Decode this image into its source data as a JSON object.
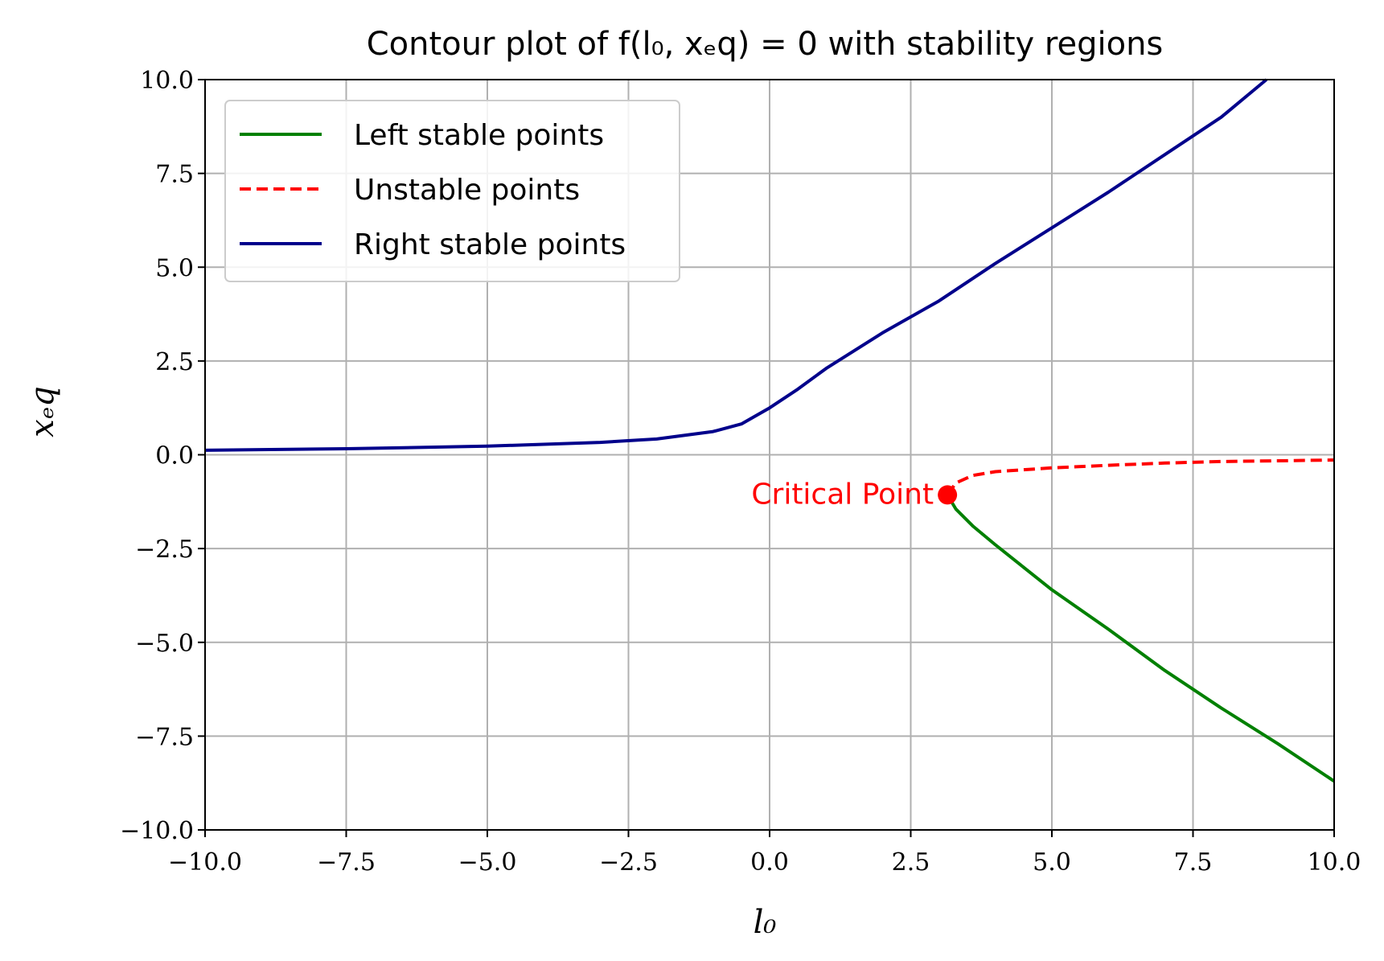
{
  "chart_data": {
    "type": "line",
    "title": "Contour plot of f(l₀, xₑq) = 0 with stability regions",
    "xlabel": "l₀",
    "ylabel": "xₑq",
    "xlim": [
      -10,
      10
    ],
    "ylim": [
      -10,
      10
    ],
    "xticks": [
      -10,
      -7.5,
      -5,
      -2.5,
      0,
      2.5,
      5,
      7.5,
      10
    ],
    "yticks": [
      -10,
      -7.5,
      -5,
      -2.5,
      0,
      2.5,
      5,
      7.5,
      10
    ],
    "xtick_labels": [
      "−10.0",
      "−7.5",
      "−5.0",
      "−2.5",
      "0.0",
      "2.5",
      "5.0",
      "7.5",
      "10.0"
    ],
    "ytick_labels": [
      "−10.0",
      "−7.5",
      "−5.0",
      "−2.5",
      "0.0",
      "2.5",
      "5.0",
      "7.5",
      "10.0"
    ],
    "grid": true,
    "legend_position": "top-left",
    "series": [
      {
        "name": "Left stable points",
        "color": "#008000",
        "style": "solid",
        "x": [
          3.15,
          3.3,
          3.6,
          4.0,
          5.0,
          6.0,
          7.0,
          8.0,
          9.0,
          10.0
        ],
        "y": [
          -1.07,
          -1.45,
          -1.9,
          -2.4,
          -3.6,
          -4.65,
          -5.75,
          -6.75,
          -7.7,
          -8.7
        ]
      },
      {
        "name": "Unstable points",
        "color": "#ff0000",
        "style": "dashed",
        "x": [
          3.15,
          3.3,
          3.6,
          4.0,
          5.0,
          6.0,
          7.0,
          8.0,
          9.0,
          10.0
        ],
        "y": [
          -1.07,
          -0.75,
          -0.55,
          -0.45,
          -0.35,
          -0.28,
          -0.22,
          -0.18,
          -0.16,
          -0.14
        ]
      },
      {
        "name": "Right stable points",
        "color": "#00008b",
        "style": "solid",
        "x": [
          -10,
          -7.5,
          -5,
          -3,
          -2,
          -1,
          -0.5,
          0,
          0.5,
          1,
          2,
          3,
          4,
          5,
          6,
          7,
          8,
          8.8
        ],
        "y": [
          0.12,
          0.16,
          0.23,
          0.33,
          0.42,
          0.62,
          0.82,
          1.25,
          1.75,
          2.3,
          3.25,
          4.1,
          5.1,
          6.05,
          7.0,
          8.0,
          9.0,
          10.0
        ]
      }
    ],
    "annotations": [
      {
        "text": "Critical Point",
        "x": 3.15,
        "y": -1.07,
        "color": "#ff0000"
      }
    ]
  }
}
